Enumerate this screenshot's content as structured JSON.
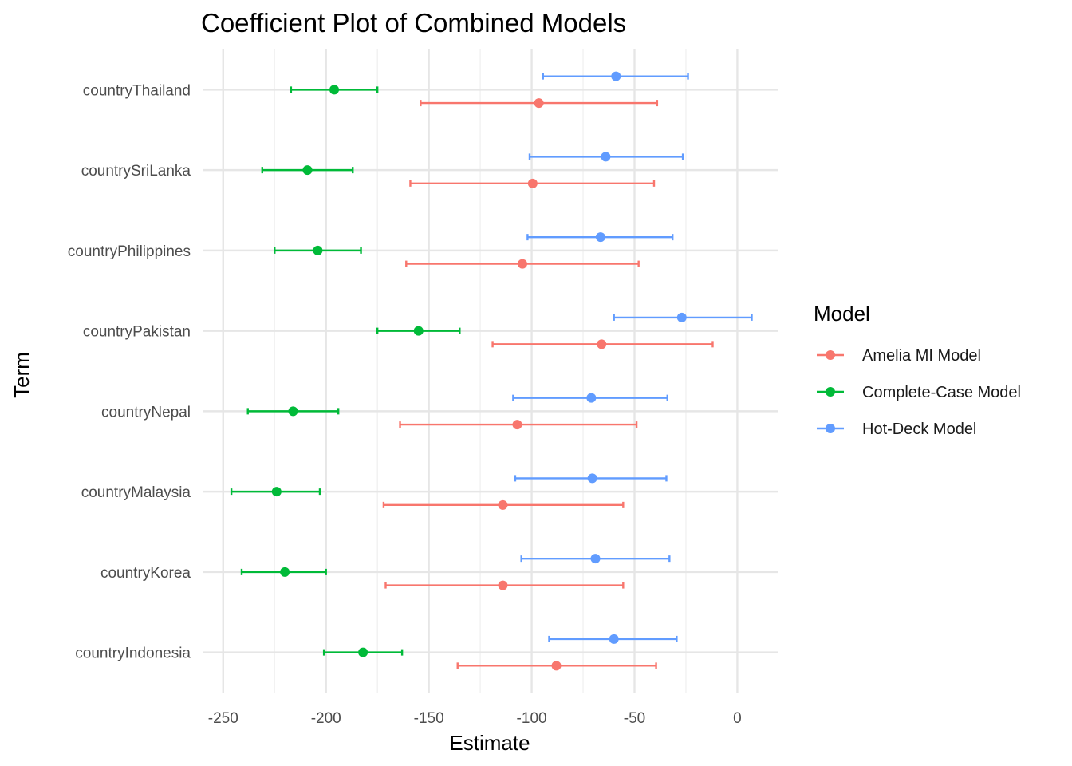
{
  "chart_data": {
    "type": "scatter",
    "title": "Coefficient Plot of Combined Models",
    "xlabel": "Estimate",
    "ylabel": "Term",
    "xlim": [
      -260,
      20
    ],
    "xticks": [
      -250,
      -200,
      -150,
      -100,
      -50,
      0
    ],
    "xtick_labels": [
      "-250",
      "-200",
      "-150",
      "-100",
      "-50",
      "0"
    ],
    "grid": true,
    "legend": {
      "title": "Model",
      "position": "right"
    },
    "categories": [
      "countryThailand",
      "countrySriLanka",
      "countryPhilippines",
      "countryPakistan",
      "countryNepal",
      "countryMalaysia",
      "countryKorea",
      "countryIndonesia"
    ],
    "series": [
      {
        "name": "Amelia MI Model",
        "color": "#F8766D",
        "estimate": [
          -96.5,
          -99.5,
          -104.5,
          -66,
          -107,
          -114,
          -114,
          -88
        ],
        "lower": [
          -154,
          -159,
          -161,
          -119,
          -164,
          -172,
          -171,
          -136
        ],
        "upper": [
          -39,
          -40.5,
          -48,
          -12,
          -49,
          -55.5,
          -55.5,
          -39.5
        ]
      },
      {
        "name": "Complete-Case Model",
        "color": "#00BA38",
        "estimate": [
          -196,
          -209,
          -204,
          -155,
          -216,
          -224,
          -220,
          -182
        ],
        "lower": [
          -217,
          -231,
          -225,
          -175,
          -238,
          -246,
          -241,
          -201
        ],
        "upper": [
          -175,
          -187,
          -183,
          -135,
          -194,
          -203,
          -200,
          -163
        ]
      },
      {
        "name": "Hot-Deck Model",
        "color": "#619CFF",
        "estimate": [
          -59,
          -64,
          -66.5,
          -27,
          -71,
          -70.5,
          -69,
          -60
        ],
        "lower": [
          -94.5,
          -101,
          -102,
          -60,
          -109,
          -108,
          -105,
          -91.5
        ],
        "upper": [
          -24,
          -26.5,
          -31.5,
          7,
          -34,
          -34.5,
          -33,
          -29.5
        ]
      }
    ]
  }
}
